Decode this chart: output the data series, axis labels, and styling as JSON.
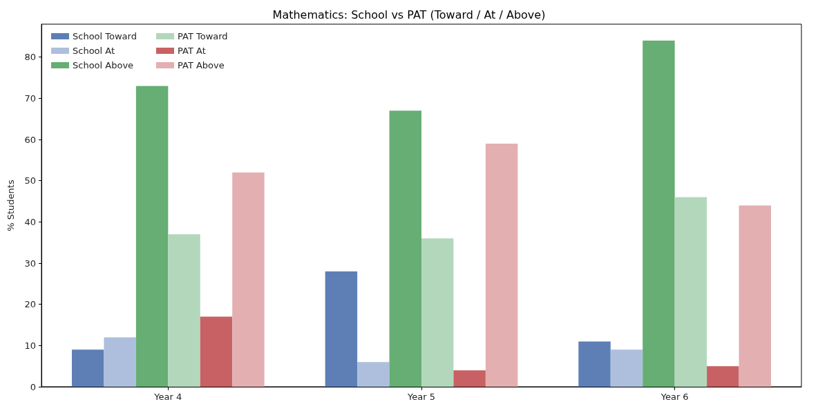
{
  "chart_data": {
    "type": "bar",
    "title": "Mathematics: School vs PAT (Toward / At / Above)",
    "ylabel": "% Students",
    "categories": [
      "Year 4",
      "Year 5",
      "Year 6"
    ],
    "series": [
      {
        "name": "School Toward",
        "color": "#5d7fb6",
        "values": [
          9,
          28,
          11
        ]
      },
      {
        "name": "School At",
        "color": "#aebfdd",
        "values": [
          12,
          6,
          9
        ]
      },
      {
        "name": "School Above",
        "color": "#66ae73",
        "values": [
          73,
          67,
          84
        ]
      },
      {
        "name": "PAT Toward",
        "color": "#b3d7bb",
        "values": [
          37,
          36,
          46
        ]
      },
      {
        "name": "PAT At",
        "color": "#c86163",
        "values": [
          17,
          4,
          5
        ]
      },
      {
        "name": "PAT Above",
        "color": "#e3afb0",
        "values": [
          52,
          59,
          44
        ]
      }
    ],
    "ylim": [
      0,
      88
    ],
    "yticks": [
      0,
      10,
      20,
      30,
      40,
      50,
      60,
      70,
      80
    ],
    "grid": false,
    "legend": "top left"
  }
}
